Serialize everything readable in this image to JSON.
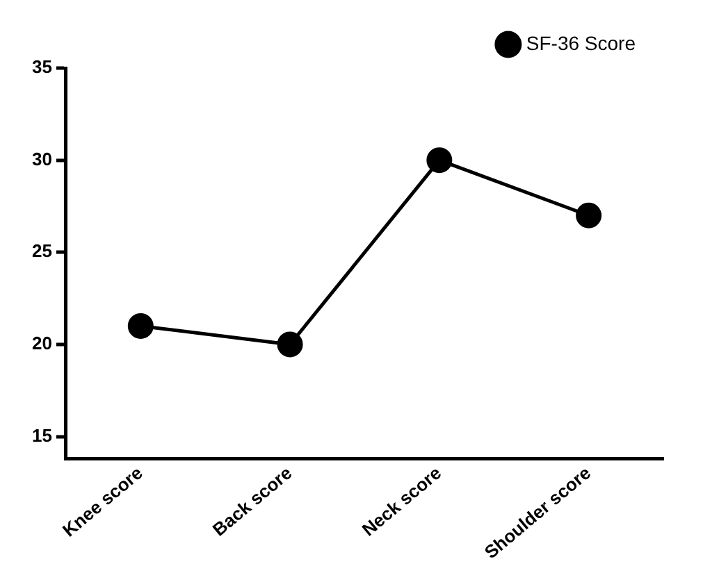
{
  "chart_data": {
    "type": "line",
    "categories": [
      "Knee score",
      "Back score",
      "Neck score",
      "Shoulder score"
    ],
    "series": [
      {
        "name": "SF-36 Score",
        "color": "#000000",
        "values": [
          21,
          20,
          30,
          27
        ]
      }
    ],
    "ylim": [
      13.8,
      35
    ],
    "yticks": [
      15,
      20,
      25,
      30,
      35
    ],
    "grid": false,
    "legend": "top right",
    "marker": "circle",
    "line_style": "solid"
  }
}
